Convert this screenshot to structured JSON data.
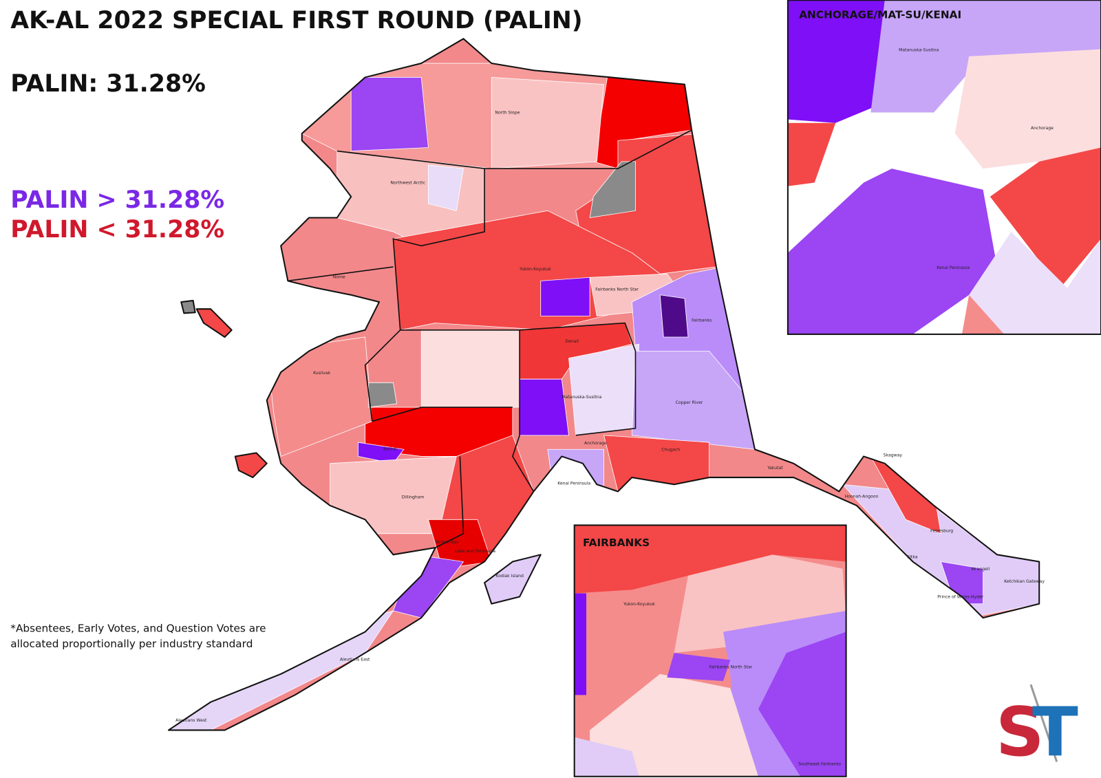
{
  "header": {
    "title": "AK-AL 2022 SPECIAL FIRST ROUND (PALIN)",
    "result": "PALIN: 31.28%"
  },
  "legend": {
    "above": "PALIN > 31.28%",
    "below": "PALIN < 31.28%"
  },
  "footnote": {
    "line1": "*Absentees, Early Votes, and Question Votes are",
    "line2": "allocated proportionally per industry standard"
  },
  "insets": {
    "anchorage": {
      "title": "ANCHORAGE/MAT-SU/KENAI",
      "labels": [
        "Matanuska-Susitna",
        "Anchorage",
        "Kenai Peninsula"
      ]
    },
    "fairbanks": {
      "title": "FAIRBANKS",
      "labels": [
        "Yukon-Koyukuk",
        "Fairbanks North Star",
        "Southeast Fairbanks"
      ]
    }
  },
  "regions": {
    "labels": [
      "North Slope",
      "Northwest Arctic",
      "Nome",
      "Yukon-Koyukuk",
      "Fairbanks North Star",
      "Fairbanks",
      "Denali",
      "Kusilvak",
      "Bethel",
      "Dillingham",
      "Matanuska-Susitna",
      "Anchorage",
      "Kenai Peninsula",
      "Chugach",
      "Copper River",
      "Yakutat",
      "Skagway",
      "Hoonah-Angoon",
      "Petersburg",
      "Sitka",
      "Wrangell",
      "Ketchikan Gateway",
      "Prince of Wales-Hyder",
      "Kodiak Island",
      "Aleutians East",
      "Aleutians West",
      "Bristol Bay",
      "Lake and Peninsula"
    ]
  },
  "logo": {
    "left": "S",
    "right": "T"
  }
}
